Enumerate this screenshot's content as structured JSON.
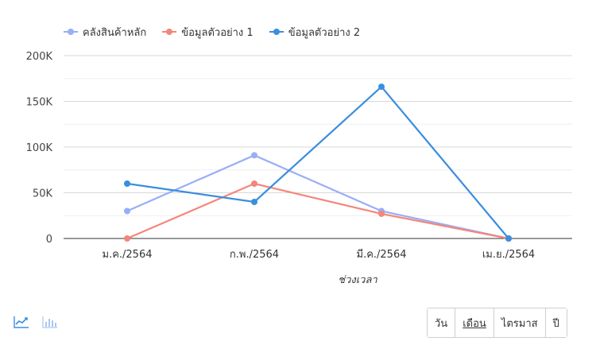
{
  "chart_data": {
    "type": "line",
    "categories": [
      "ม.ค./2564",
      "ก.พ./2564",
      "มี.ค./2564",
      "เม.ย./2564"
    ],
    "series": [
      {
        "name": "คลังสินค้าหลัก",
        "values": [
          30000,
          91000,
          30000,
          0
        ],
        "color": "#98aef7"
      },
      {
        "name": "ข้อมูลตัวอย่าง 1",
        "values": [
          0,
          60000,
          27000,
          0
        ],
        "color": "#f4867a"
      },
      {
        "name": "ข้อมูลตัวอย่าง 2",
        "values": [
          60000,
          40000,
          166000,
          0
        ],
        "color": "#3a8ede"
      }
    ],
    "y_ticks": [
      "0",
      "50K",
      "100K",
      "150K",
      "200K"
    ],
    "ylim": [
      0,
      200000
    ],
    "xlabel": "ช่วงเวลา",
    "grid": true,
    "legend": "top-left"
  },
  "controls": {
    "view_icons": [
      "line-chart-icon",
      "bar-chart-icon"
    ],
    "periods": [
      {
        "label": "วัน",
        "active": false
      },
      {
        "label": "เดือน",
        "active": true
      },
      {
        "label": "ไตรมาส",
        "active": false
      },
      {
        "label": "ปี",
        "active": false
      }
    ]
  }
}
